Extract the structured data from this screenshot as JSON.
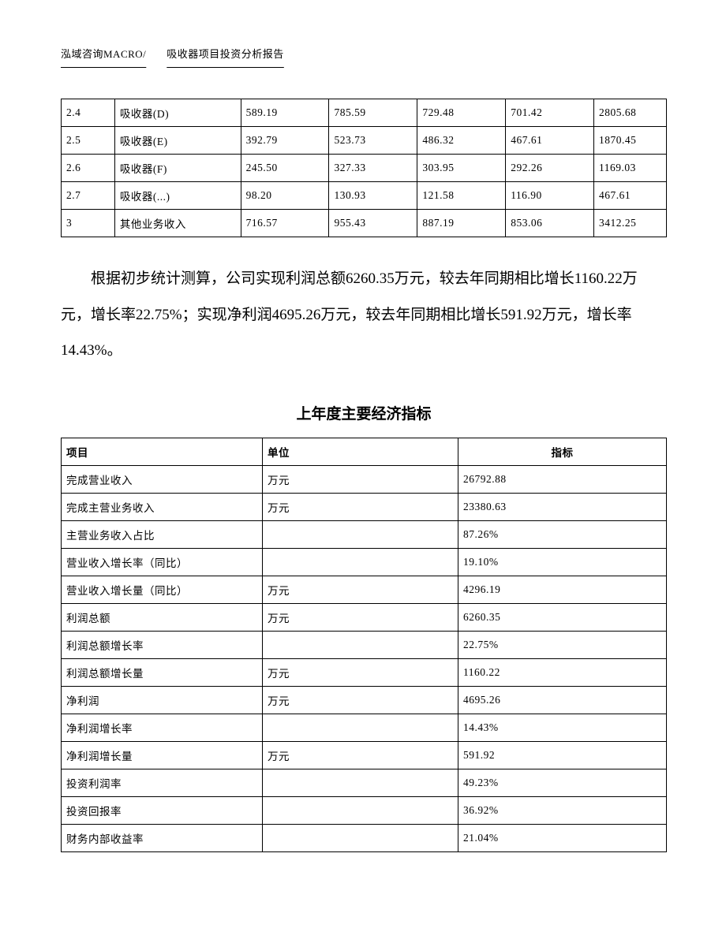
{
  "header": {
    "left": "泓域咨询MACRO/",
    "right": "吸收器项目投资分析报告"
  },
  "table1": {
    "rows": [
      [
        "2.4",
        "吸收器(D)",
        "589.19",
        "785.59",
        "729.48",
        "701.42",
        "2805.68"
      ],
      [
        "2.5",
        "吸收器(E)",
        "392.79",
        "523.73",
        "486.32",
        "467.61",
        "1870.45"
      ],
      [
        "2.6",
        "吸收器(F)",
        "245.50",
        "327.33",
        "303.95",
        "292.26",
        "1169.03"
      ],
      [
        "2.7",
        "吸收器(...)",
        "98.20",
        "130.93",
        "121.58",
        "116.90",
        "467.61"
      ],
      [
        "3",
        "其他业务收入",
        "716.57",
        "955.43",
        "887.19",
        "853.06",
        "3412.25"
      ]
    ]
  },
  "paragraph": "根据初步统计测算，公司实现利润总额6260.35万元，较去年同期相比增长1160.22万元，增长率22.75%；实现净利润4695.26万元，较去年同期相比增长591.92万元，增长率14.43%。",
  "section_title": "上年度主要经济指标",
  "table2": {
    "headers": [
      "项目",
      "单位",
      "指标"
    ],
    "rows": [
      [
        "完成营业收入",
        "万元",
        "26792.88"
      ],
      [
        "完成主营业务收入",
        "万元",
        "23380.63"
      ],
      [
        "主营业务收入占比",
        "",
        "87.26%"
      ],
      [
        "营业收入增长率（同比）",
        "",
        "19.10%"
      ],
      [
        "营业收入增长量（同比）",
        "万元",
        "4296.19"
      ],
      [
        "利润总额",
        "万元",
        "6260.35"
      ],
      [
        "利润总额增长率",
        "",
        "22.75%"
      ],
      [
        "利润总额增长量",
        "万元",
        "1160.22"
      ],
      [
        "净利润",
        "万元",
        "4695.26"
      ],
      [
        "净利润增长率",
        "",
        "14.43%"
      ],
      [
        "净利润增长量",
        "万元",
        "591.92"
      ],
      [
        "投资利润率",
        "",
        "49.23%"
      ],
      [
        "投资回报率",
        "",
        "36.92%"
      ],
      [
        "财务内部收益率",
        "",
        "21.04%"
      ]
    ]
  }
}
